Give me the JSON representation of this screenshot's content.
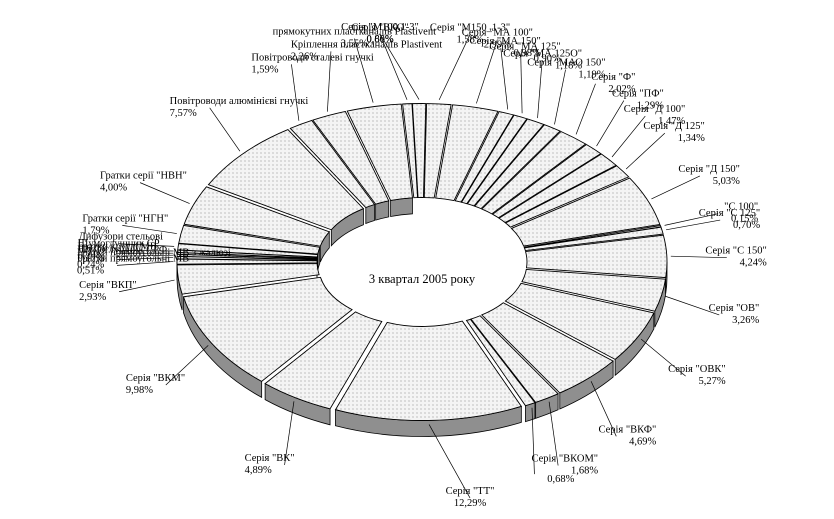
{
  "chart_data": {
    "type": "pie",
    "title": "3 квартал 2005 року",
    "style": "exploded 3D doughnut with dotted fill",
    "colors": {
      "top": "#f2f2f2",
      "side": "#8f8f8f",
      "edge": "#000000"
    },
    "slices": [
      {
        "label": "Серія \"ВКО\"",
        "value_label": "0,60%",
        "value": 0.6
      },
      {
        "label": "Серія \"М100 1-3\"",
        "value_label": "0,86%",
        "value": 0.86
      },
      {
        "label": "Серія \"М150_1-3\"",
        "value_label": "1,58%",
        "value": 1.58
      },
      {
        "label": "Серія \"МА 100\"",
        "value_label": "2,99%",
        "value": 2.99
      },
      {
        "label": "Серія \"МА 150\"",
        "value_label": "0,98%",
        "value": 0.98
      },
      {
        "label": "Серія \"МА 125\"",
        "value_label": "0,90%",
        "value": 0.9
      },
      {
        "label": "Серія \"МА 125О\"",
        "value_label": "1,18%",
        "value": 1.18
      },
      {
        "label": "Серія \"МАО 150\"",
        "value_label": "1,19%",
        "value": 1.19
      },
      {
        "label": "Серія \"Ф\"",
        "value_label": "2,02%",
        "value": 2.02
      },
      {
        "label": "Серія \"ПФ\"",
        "value_label": "1,29%",
        "value": 1.29
      },
      {
        "label": "Серія \"Д 100\"",
        "value_label": "1,47%",
        "value": 1.47
      },
      {
        "label": "Серія \"Д 125\"",
        "value_label": "1,34%",
        "value": 1.34
      },
      {
        "label": "Серія \"Д 150\"",
        "value_label": "5,03%",
        "value": 5.03
      },
      {
        "label": "\"С 100\"",
        "value_label": "0,15%",
        "value": 0.15
      },
      {
        "label": "Серія \"С 125\"",
        "value_label": "0,70%",
        "value": 0.7
      },
      {
        "label": "Серія \"С 150\"",
        "value_label": "4,24%",
        "value": 4.24
      },
      {
        "label": "Серія \"ОВ\"",
        "value_label": "3,26%",
        "value": 3.26
      },
      {
        "label": "Серія \"ОВК\"",
        "value_label": "5,27%",
        "value": 5.27
      },
      {
        "label": "Серія \"ВКФ\"",
        "value_label": "4,69%",
        "value": 4.69
      },
      {
        "label": "Серія \"ВКОМ\"",
        "value_label": "1,68%",
        "value": 1.68
      },
      {
        "label": "",
        "value_label": "0,68%",
        "value": 0.68
      },
      {
        "label": "Серія \"ТТ\"",
        "value_label": "12,29%",
        "value": 12.29
      },
      {
        "label": "Серія \"ВК\"",
        "value_label": "4,89%",
        "value": 4.89
      },
      {
        "label": "Серія \"ВКМ\"",
        "value_label": "9,98%",
        "value": 9.98
      },
      {
        "label": "Серія \"ВКП\"",
        "value_label": "2,93%",
        "value": 2.93
      },
      {
        "label": "Гратки прямоугольні МВ",
        "value_label": "0,51%",
        "value": 0.51
      },
      {
        "label": "Гратки прямоугольні МВ з жалюзі",
        "value_label": "0,24%",
        "value": 0.24
      },
      {
        "label": "Шумоглушник СРФ",
        "value_label": "",
        "value": 0.2
      },
      {
        "label": "Гратки круглі МВ",
        "value_label": "0,17%",
        "value": 0.17
      },
      {
        "label": "Шумоглушник СР",
        "value_label": "0,24%",
        "value": 0.24
      },
      {
        "label": "Дифузори стельові",
        "value_label": "0,62%",
        "value": 0.62
      },
      {
        "label": "Гратки серії \"НГН\"",
        "value_label": "1,79%",
        "value": 1.79
      },
      {
        "label": "Гратки серії \"НВН\"",
        "value_label": "4,00%",
        "value": 4.0
      },
      {
        "label": "Повітроводи алюмінієві гнучкі",
        "value_label": "7,57%",
        "value": 7.57
      },
      {
        "label": "Повітроводи сталеві гнучкі",
        "value_label": "1,59%",
        "value": 1.59
      },
      {
        "label": "Кріплення пластканалів Plastivent",
        "value_label": "2,26%",
        "value": 2.26
      },
      {
        "label": "прямокутних пластканалів Plastivent",
        "value_label": "3,55%",
        "value": 3.55
      }
    ]
  }
}
